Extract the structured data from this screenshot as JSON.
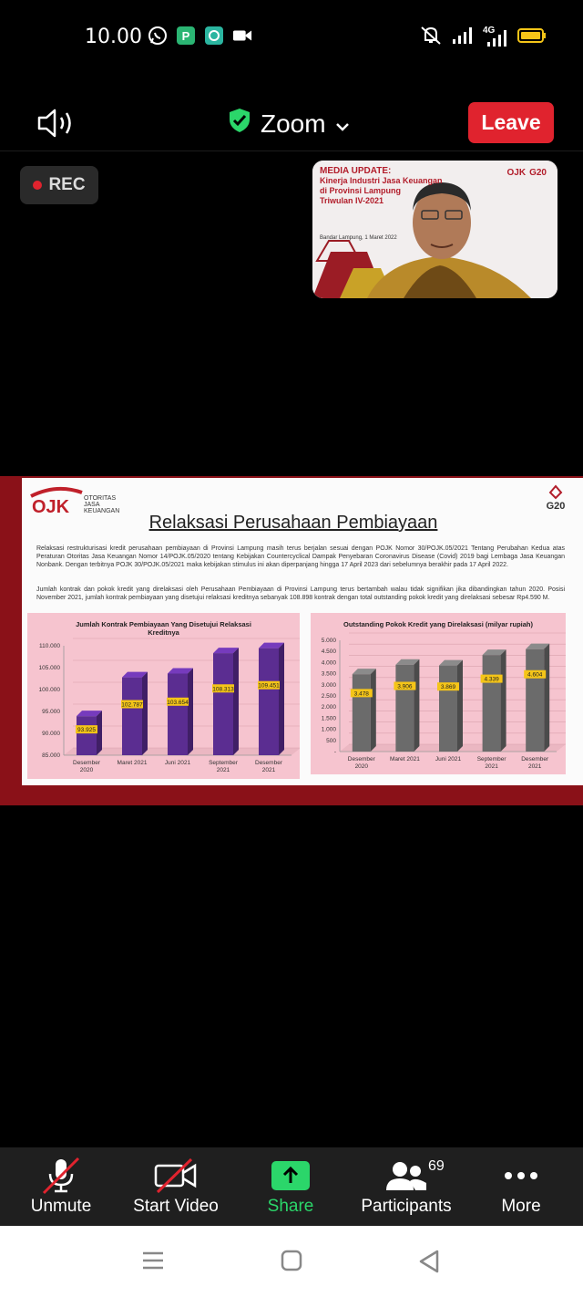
{
  "status_bar": {
    "time": "10.00",
    "network": "4G",
    "icons": [
      "whatsapp-icon",
      "p-app-icon",
      "chat-app-icon",
      "video-camera-icon",
      "mute-bell-icon",
      "signal-icon",
      "4g-signal-icon",
      "battery-icon"
    ]
  },
  "header": {
    "title": "Zoom",
    "leave_label": "Leave",
    "rec_label": "REC",
    "colors": {
      "leave": "#e0232e",
      "shield": "#2bd66a"
    }
  },
  "thumbnail": {
    "line1": "MEDIA UPDATE:",
    "line2": "Kinerja Industri Jasa Keuangan",
    "line3": "di Provinsi Lampung",
    "line4": "Triwulan IV-2021",
    "date": "Bandar Lampung, 1 Maret 2022"
  },
  "slide": {
    "logo_left": "OJK",
    "logo_left_sub1": "OTORITAS",
    "logo_left_sub2": "JASA",
    "logo_left_sub3": "KEUANGAN",
    "logo_right": "G20",
    "title": "Relaksasi Perusahaan Pembiayaan",
    "paragraph1": "Relaksasi restrukturisasi kredit perusahaan pembiayaan di Provinsi Lampung masih terus berjalan sesuai dengan POJK Nomor 30/POJK.05/2021 Tentang Perubahan Kedua atas Peraturan Otoritas Jasa Keuangan Nomor 14/POJK.05/2020 tentang Kebijakan Countercyclical Dampak Penyebaran Coronavirus Disease (Covid) 2019 bagi Lembaga Jasa Keuangan Nonbank. Dengan terbitnya POJK 30/POJK.05/2021 maka kebijakan stimulus ini akan diperpanjang hingga 17 April 2023 dari sebelumnya berakhir pada 17 April 2022.",
    "paragraph2": "Jumlah kontrak dan pokok kredit yang direlaksasi oleh Perusahaan Pembiayaan di Provinsi Lampung terus bertambah walau tidak signifikan jika dibandingkan tahun 2020. Posisi November 2021, jumlah kontrak pembiayaan yang disetujui relaksasi kreditnya sebanyak 108.898 kontrak dengan total outstanding pokok kredit yang direlaksasi sebesar Rp4.590 M."
  },
  "chart_data": [
    {
      "type": "bar",
      "title": "Jumlah Kontrak Pembiayaan Yang Disetujui Relaksasi Kreditnya",
      "categories": [
        "Desember 2020",
        "Maret 2021",
        "Juni 2021",
        "September 2021",
        "Desember 2021"
      ],
      "values": [
        93.925,
        102.787,
        103.654,
        108.313,
        109.451
      ],
      "value_labels": [
        "93.925",
        "102.787",
        "103.654",
        "108.313",
        "109.451"
      ],
      "ylim": [
        85000,
        110000
      ],
      "yticks": [
        "110.000",
        "105.000",
        "100.000",
        "95.000",
        "90.000",
        "85.000"
      ],
      "ytick_values": [
        110000,
        105000,
        100000,
        95000,
        90000,
        85000
      ],
      "series_values": [
        93925,
        102787,
        103654,
        108313,
        109451
      ],
      "color": "#5b2d91",
      "label_color": "#f5c518"
    },
    {
      "type": "bar",
      "title": "Outstanding Pokok Kredit yang Direlaksasi (milyar rupiah)",
      "categories": [
        "Desember 2020",
        "Maret 2021",
        "Juni 2021",
        "September 2021",
        "Desember 2021"
      ],
      "value_labels": [
        "3.478",
        "3.906",
        "3.869",
        "4.339",
        "4.604"
      ],
      "series_values": [
        3478,
        3906,
        3869,
        4339,
        4604
      ],
      "ylim": [
        0,
        5000
      ],
      "yticks": [
        "5.000",
        "4.500",
        "4.000",
        "3.500",
        "3.000",
        "2.500",
        "2.000",
        "1.500",
        "1.000",
        "500",
        "-"
      ],
      "ytick_values": [
        5000,
        4500,
        4000,
        3500,
        3000,
        2500,
        2000,
        1500,
        1000,
        500,
        0
      ],
      "color": "#6b6b6b",
      "label_color": "#f5c518"
    }
  ],
  "toolbar": {
    "unmute": "Unmute",
    "start_video": "Start Video",
    "share": "Share",
    "participants": "Participants",
    "participant_count": "69",
    "more": "More"
  }
}
